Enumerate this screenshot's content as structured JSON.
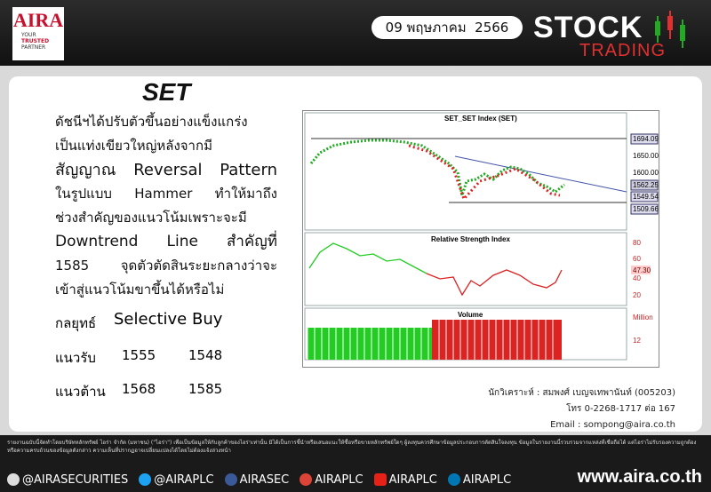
{
  "header": {
    "logo": "AIRA",
    "tagline": [
      "YOUR",
      "TRUSTED",
      "PARTNER"
    ],
    "date": "09 พฤษภาคม  2566",
    "brand": "STOCK",
    "brand_sub": "TRADING"
  },
  "article": {
    "title": "SET",
    "lines": [
      "ดัชนีฯได้ปรับตัวขึ้นอย่างแข็งแกร่ง",
      "เป็นแท่งเขียวใหญ่หลังจากมี",
      "สัญญาณ Reversal Pattern",
      "ในรูปแบบ Hammer ทำให้มาถึง",
      "ช่วงสำคัญของแนวโน้มเพราะจะมี",
      "Downtrend Line สำคัญที่",
      "1585 จุดตัวตัดสินระยะกลางว่าจะ",
      "เข้าสู่แนวโน้มขาขึ้นได้หรือไม่"
    ],
    "strategy_label": "กลยุทธ์",
    "strategy": "Selective Buy",
    "support_label": "แนวรับ",
    "support": [
      "1555",
      "1548"
    ],
    "resistance_label": "แนวต้าน",
    "resistance": [
      "1568",
      "1585"
    ]
  },
  "chart": {
    "title": "SET_SET Index (SET)",
    "price_labels": [
      "1694.09",
      "1650.00",
      "1600.00",
      "1562.25",
      "1549.54",
      "1509.66"
    ],
    "rsi_title": "Relative Strength Index",
    "rsi_labels": [
      "80",
      "60",
      "47.30",
      "40",
      "20"
    ],
    "volume_title": "Volume",
    "volume_labels": [
      "Million",
      "12"
    ]
  },
  "analyst": {
    "name": "นักวิเคราะห์ : สมพงศ์ เบญจเทพานันท์ (005203)",
    "phone": "โทร 0-2268-1717 ต่อ 167",
    "email": "Email : sompong@aira.co.th"
  },
  "footer": {
    "disclaimer": "รายงานฉบับนี้จัดทำโดยบริษัทหลักทรัพย์ ไอร่า จำกัด (มหาชน) (\"ไอร่า\") เพื่อเป็นข้อมูลให้กับลูกค้าของไอร่าเท่านั้น มิได้เป็นการชี้นำหรือเสนอแนะให้ซื้อหรือขายหลักทรัพย์ใดๆ ผู้ลงทุนควรศึกษาข้อมูลประกอบการตัดสินใจลงทุน ข้อมูลในรายงานนี้รวบรวมจากแหล่งที่เชื่อถือได้ แต่ไอร่าไม่รับรองความถูกต้องหรือความครบถ้วนของข้อมูลดังกล่าว ความเห็นที่ปรากฏอาจเปลี่ยนแปลงได้โดยไม่ต้องแจ้งล่วงหน้า",
    "socials": [
      "@AIRASECURITIES",
      "@AIRAPLC",
      "AIRASEC",
      "AIRAPLC",
      "AIRAPLC",
      "AIRAPLC"
    ],
    "website": "www.aira.co.th"
  }
}
